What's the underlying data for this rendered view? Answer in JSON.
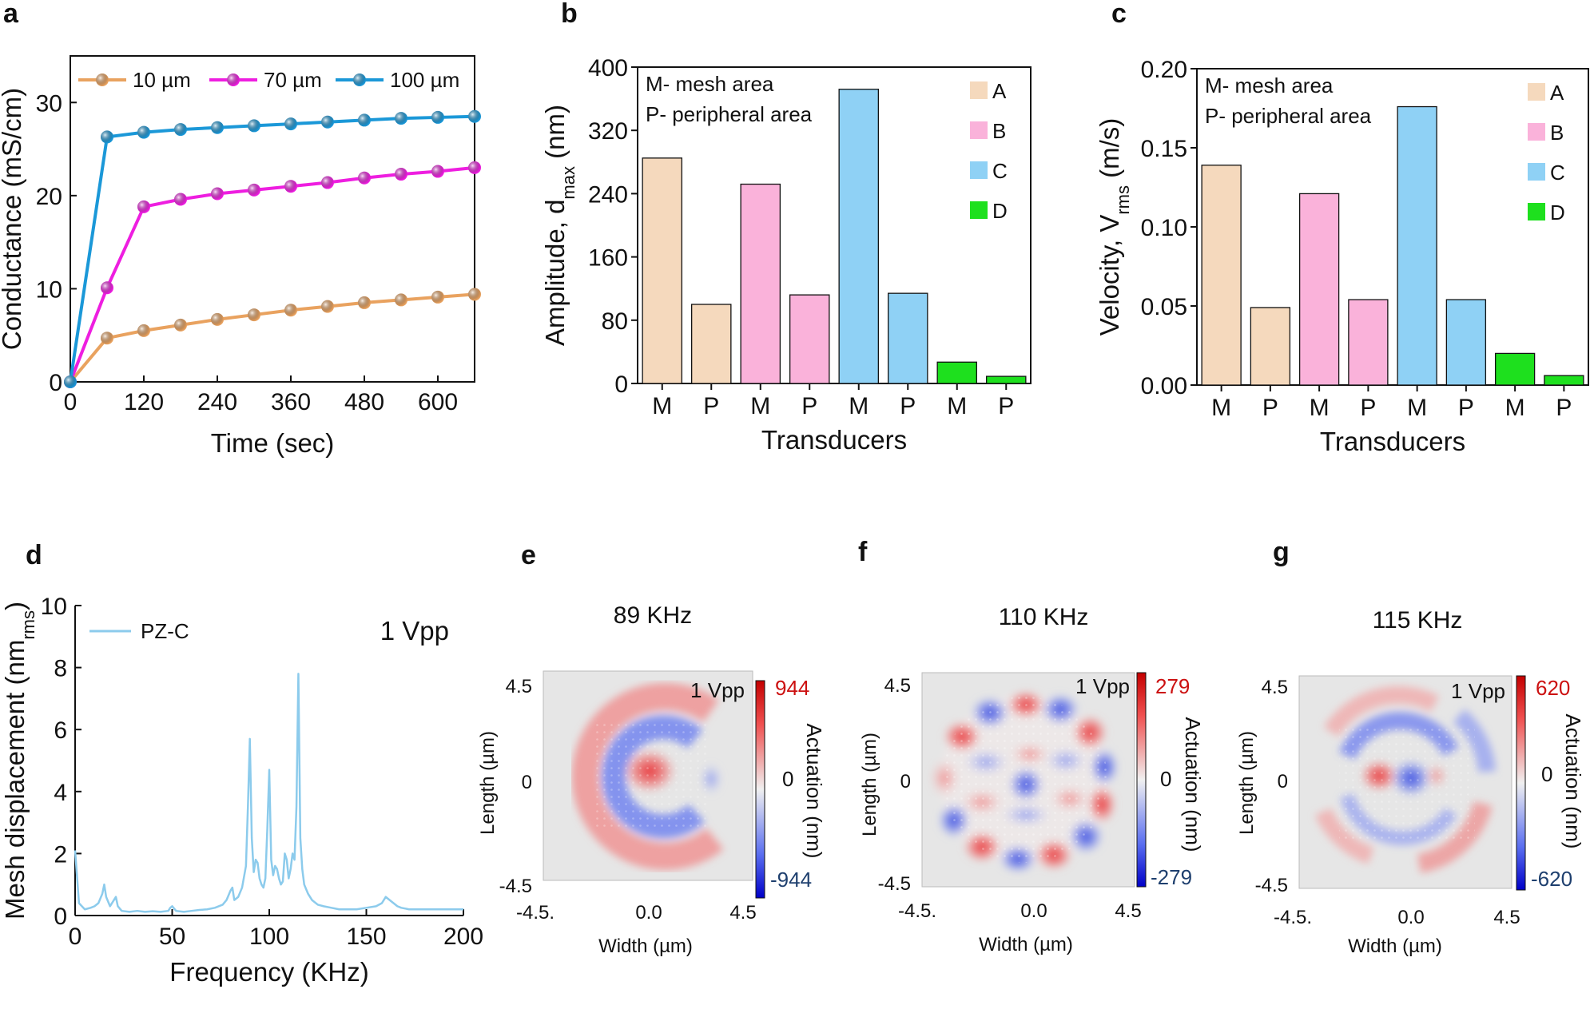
{
  "panel_labels": [
    "a",
    "b",
    "c",
    "d",
    "e",
    "f",
    "g"
  ],
  "colors": {
    "A": "#f5d9bd",
    "B": "#fab2da",
    "C": "#8fd1f5",
    "D": "#1ee01e",
    "line_10": "#e9a25f",
    "line_70": "#ee1ee0",
    "line_100": "#1b98d8",
    "spectrum": "#8ccbec",
    "map_pos": "#e02020",
    "map_neg": "#1f2fd8",
    "tick_pos_label": "#cc1111",
    "tick_neg_label": "#1e3f6e"
  },
  "chart_data": [
    {
      "id": "a",
      "type": "line",
      "xlabel": "Time (sec)",
      "ylabel": "Conductance (mS/cm)",
      "xlim": [
        0,
        660
      ],
      "ylim": [
        0,
        35
      ],
      "xticks": [
        0,
        120,
        240,
        360,
        480,
        600
      ],
      "yticks": [
        0,
        10,
        20,
        30
      ],
      "legend_position": "top",
      "series": [
        {
          "name": "10 µm",
          "color_key": "line_10",
          "x": [
            0,
            60,
            120,
            180,
            240,
            300,
            360,
            420,
            480,
            540,
            600,
            660
          ],
          "y": [
            0,
            4.7,
            5.5,
            6.1,
            6.7,
            7.2,
            7.7,
            8.1,
            8.5,
            8.8,
            9.1,
            9.4
          ]
        },
        {
          "name": "70 µm",
          "color_key": "line_70",
          "x": [
            0,
            60,
            120,
            180,
            240,
            300,
            360,
            420,
            480,
            540,
            600,
            660
          ],
          "y": [
            0,
            10.1,
            18.8,
            19.6,
            20.2,
            20.6,
            21.0,
            21.4,
            21.9,
            22.3,
            22.6,
            23.0
          ]
        },
        {
          "name": "100 µm",
          "color_key": "line_100",
          "x": [
            0,
            60,
            120,
            180,
            240,
            300,
            360,
            420,
            480,
            540,
            600,
            660
          ],
          "y": [
            0,
            26.3,
            26.8,
            27.1,
            27.3,
            27.5,
            27.7,
            27.9,
            28.1,
            28.3,
            28.4,
            28.5
          ]
        }
      ]
    },
    {
      "id": "b",
      "type": "bar",
      "xlabel": "Transducers",
      "ylabel": "Amplitude, d",
      "ylabel_sub": "max",
      "ylabel_suffix": " (nm)",
      "ylim": [
        0,
        400
      ],
      "yticks": [
        0,
        80,
        160,
        240,
        320,
        400
      ],
      "ytick_labels": [
        "0",
        "80",
        "160",
        "240",
        "320",
        "400"
      ],
      "categories": [
        "M",
        "P",
        "M",
        "P",
        "M",
        "P",
        "M",
        "P"
      ],
      "groups": [
        "A",
        "A",
        "B",
        "B",
        "C",
        "C",
        "D",
        "D"
      ],
      "values": [
        285,
        100,
        252,
        112,
        372,
        114,
        27,
        9
      ],
      "annotations": [
        "M- mesh area",
        "P- peripheral area"
      ],
      "legend": [
        "A",
        "B",
        "C",
        "D"
      ]
    },
    {
      "id": "c",
      "type": "bar",
      "xlabel": "Transducers",
      "ylabel": "Velocity, V",
      "ylabel_sub": "rms",
      "ylabel_suffix": " (m/s)",
      "ylim": [
        0,
        0.2
      ],
      "yticks": [
        0,
        0.05,
        0.1,
        0.15,
        0.2
      ],
      "ytick_labels": [
        "0.00",
        "0.05",
        "0.10",
        "0.15",
        "0.20"
      ],
      "categories": [
        "M",
        "P",
        "M",
        "P",
        "M",
        "P",
        "M",
        "P"
      ],
      "groups": [
        "A",
        "A",
        "B",
        "B",
        "C",
        "C",
        "D",
        "D"
      ],
      "values": [
        0.139,
        0.049,
        0.121,
        0.054,
        0.176,
        0.054,
        0.02,
        0.006
      ],
      "annotations": [
        "M- mesh area",
        "P- peripheral area"
      ],
      "legend": [
        "A",
        "B",
        "C",
        "D"
      ]
    },
    {
      "id": "d",
      "type": "line",
      "xlabel": "Frequency (KHz)",
      "ylabel": "Mesh displacement (nm",
      "ylabel_sub": "rms",
      "ylabel_suffix": ")",
      "xlim": [
        0,
        200
      ],
      "ylim": [
        0,
        10
      ],
      "xticks": [
        0,
        50,
        100,
        150,
        200
      ],
      "yticks": [
        0,
        2,
        4,
        6,
        8,
        10
      ],
      "legend": [
        "PZ-C"
      ],
      "annotation": "1 Vpp",
      "series": [
        {
          "name": "PZ-C",
          "color_key": "spectrum",
          "x": [
            0,
            2,
            5,
            8,
            10,
            12,
            14,
            15,
            16,
            18,
            20,
            21,
            22,
            24,
            28,
            32,
            36,
            40,
            44,
            48,
            49,
            50,
            52,
            56,
            60,
            64,
            68,
            72,
            76,
            78,
            80,
            81,
            82,
            84,
            86,
            88,
            89,
            90,
            91,
            92,
            93,
            94,
            95,
            96,
            97,
            98,
            99,
            100,
            101,
            102,
            103,
            104,
            105,
            106,
            107,
            108,
            109,
            110,
            111,
            112,
            113,
            114,
            115,
            116,
            117,
            118,
            120,
            122,
            125,
            128,
            132,
            136,
            140,
            145,
            150,
            155,
            158,
            160,
            162,
            164,
            166,
            168,
            172,
            176,
            180,
            185,
            190,
            195,
            200
          ],
          "y": [
            2.1,
            0.4,
            0.2,
            0.25,
            0.3,
            0.4,
            0.7,
            1.0,
            0.6,
            0.3,
            0.5,
            0.6,
            0.3,
            0.15,
            0.12,
            0.15,
            0.12,
            0.14,
            0.12,
            0.15,
            0.25,
            0.3,
            0.15,
            0.12,
            0.15,
            0.18,
            0.2,
            0.25,
            0.35,
            0.5,
            0.8,
            0.9,
            0.5,
            0.6,
            0.9,
            1.6,
            3.5,
            5.7,
            2.5,
            1.4,
            1.8,
            1.7,
            1.2,
            1.0,
            0.9,
            1.2,
            2.8,
            4.7,
            1.8,
            1.3,
            1.6,
            1.5,
            1.2,
            1.0,
            1.1,
            2.0,
            1.8,
            1.2,
            1.5,
            2.0,
            1.8,
            3.5,
            7.8,
            2.5,
            1.5,
            1.0,
            0.7,
            0.5,
            0.35,
            0.3,
            0.25,
            0.2,
            0.2,
            0.2,
            0.25,
            0.3,
            0.4,
            0.6,
            0.5,
            0.4,
            0.3,
            0.25,
            0.2,
            0.2,
            0.2,
            0.2,
            0.2,
            0.2,
            0.2
          ]
        }
      ]
    },
    {
      "id": "e",
      "type": "heatmap",
      "title": "89 KHz",
      "annotation": "1 Vpp",
      "xlabel": "Width (µm)",
      "ylabel": "Length (µm)",
      "xticks": [
        "-4.5.",
        "0.0",
        "4.5"
      ],
      "yticks": [
        "4.5",
        "0",
        "-4.5"
      ],
      "colorbar_label": "Actuation (nm)",
      "colorbar_ticks": [
        "944",
        "0",
        "-944"
      ],
      "vmax": 944,
      "vmin": -944
    },
    {
      "id": "f",
      "type": "heatmap",
      "title": "110 KHz",
      "annotation": "1 Vpp",
      "xlabel": "Width (µm)",
      "ylabel": "Length (µm)",
      "xticks": [
        "-4.5.",
        "0.0",
        "4.5"
      ],
      "yticks": [
        "4.5",
        "0",
        "-4.5"
      ],
      "colorbar_label": "Actuation (nm)",
      "colorbar_ticks": [
        "279",
        "0",
        "-279"
      ],
      "vmax": 279,
      "vmin": -279
    },
    {
      "id": "g",
      "type": "heatmap",
      "title": "115 KHz",
      "annotation": "1 Vpp",
      "xlabel": "Width (µm)",
      "ylabel": "Length (µm)",
      "xticks": [
        "-4.5.",
        "0.0",
        "4.5"
      ],
      "yticks": [
        "4.5",
        "0",
        "-4.5"
      ],
      "colorbar_label": "Actuation (nm)",
      "colorbar_ticks": [
        "620",
        "0",
        "-620"
      ],
      "vmax": 620,
      "vmin": -620
    }
  ]
}
